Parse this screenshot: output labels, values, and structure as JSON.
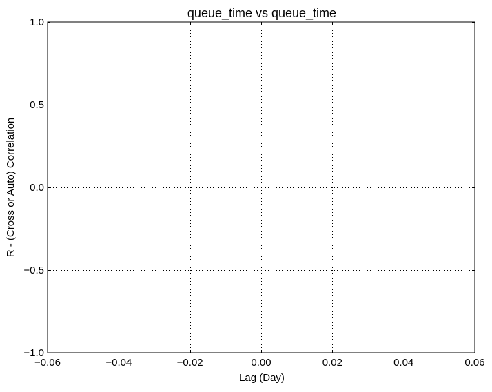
{
  "chart_data": {
    "type": "line",
    "title": "queue_time vs queue_time",
    "xlabel": "Lag (Day)",
    "ylabel": "R - (Cross or Auto) Correlation",
    "xlim": [
      -0.06,
      0.06
    ],
    "ylim": [
      -1.0,
      1.0
    ],
    "x_ticks": [
      -0.06,
      -0.04,
      -0.02,
      0.0,
      0.02,
      0.04,
      0.06
    ],
    "x_tick_labels": [
      "−0.06",
      "−0.04",
      "−0.02",
      "0.00",
      "0.02",
      "0.04",
      "0.06"
    ],
    "y_ticks": [
      -1.0,
      -0.5,
      0.0,
      0.5,
      1.0
    ],
    "y_tick_labels": [
      "−1.0",
      "−0.5",
      "0.0",
      "0.5",
      "1.0"
    ],
    "grid": true,
    "series": []
  }
}
